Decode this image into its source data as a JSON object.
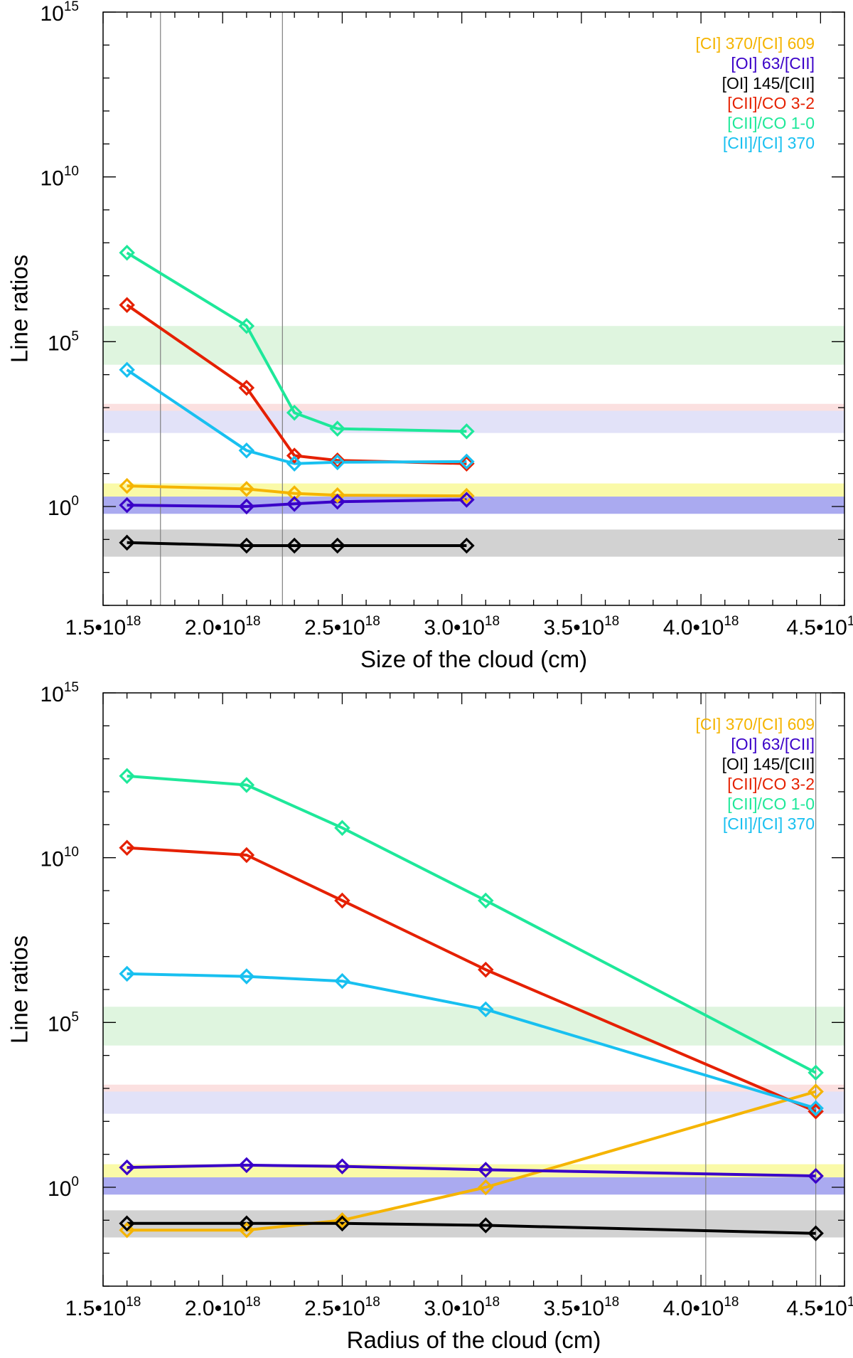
{
  "chart_data": [
    {
      "type": "line",
      "yscale": "log",
      "xlabel": "Size of the cloud (cm)",
      "ylabel": "Line ratios",
      "xlim": [
        1.5e+18,
        4.6e+18
      ],
      "ylim": [
        0.001,
        1000000000000000.0
      ],
      "x_tick_labels": [
        {
          "mantissa": "1.5•10",
          "exp": "18"
        },
        {
          "mantissa": "2.0•10",
          "exp": "18"
        },
        {
          "mantissa": "2.5•10",
          "exp": "18"
        },
        {
          "mantissa": "3.0•10",
          "exp": "18"
        },
        {
          "mantissa": "3.5•10",
          "exp": "18"
        },
        {
          "mantissa": "4.0•10",
          "exp": "18"
        },
        {
          "mantissa": "4.5•10",
          "exp": "1"
        }
      ],
      "y_tick_labels": [
        {
          "base": "10",
          "exp": "0",
          "value": 1
        },
        {
          "base": "10",
          "exp": "5",
          "value": 100000.0
        },
        {
          "base": "10",
          "exp": "10",
          "value": 10000000000.0
        },
        {
          "base": "10",
          "exp": "15",
          "value": 1000000000000000.0
        }
      ],
      "vertical_lines": [
        1.74e+18,
        2.25e+18
      ],
      "bands": [
        {
          "low": 20000.0,
          "high": 300000.0,
          "color": "#dff5df"
        },
        {
          "low": 800,
          "high": 1300,
          "color": "#fbe0e0"
        },
        {
          "low": 170,
          "high": 800,
          "color": "#e2e2f8"
        },
        {
          "low": 2.0,
          "high": 5.0,
          "color": "#fafaa8"
        },
        {
          "low": 0.6,
          "high": 2.0,
          "color": "#aaaaf0"
        },
        {
          "low": 0.03,
          "high": 0.2,
          "color": "#d2d2d2"
        }
      ],
      "series": [
        {
          "name": "[CI] 370/[CI] 609",
          "color": "#f5b400",
          "x": [
            1.6e+18,
            2.1e+18,
            2.3e+18,
            2.48e+18,
            3.02e+18
          ],
          "values": [
            4.2,
            3.4,
            2.5,
            2.2,
            2.1
          ]
        },
        {
          "name": "[OI] 63/[CII]",
          "color": "#3a00c8",
          "x": [
            1.6e+18,
            2.1e+18,
            2.3e+18,
            2.48e+18,
            3.02e+18
          ],
          "values": [
            1.1,
            1.0,
            1.2,
            1.4,
            1.6
          ]
        },
        {
          "name": "[OI] 145/[CII]",
          "color": "#000000",
          "x": [
            1.6e+18,
            2.1e+18,
            2.3e+18,
            2.48e+18,
            3.02e+18
          ],
          "values": [
            0.08,
            0.065,
            0.065,
            0.065,
            0.065
          ]
        },
        {
          "name": "[CII]/CO 3-2",
          "color": "#e52000",
          "x": [
            1.6e+18,
            2.1e+18,
            2.3e+18,
            2.48e+18,
            3.02e+18
          ],
          "values": [
            1300000.0,
            4000.0,
            35,
            25,
            20
          ]
        },
        {
          "name": "[CII]/CO 1-0",
          "color": "#1ee89a",
          "x": [
            1.6e+18,
            2.1e+18,
            2.3e+18,
            2.48e+18,
            3.02e+18
          ],
          "values": [
            50000000.0,
            300000.0,
            700,
            230,
            190
          ]
        },
        {
          "name": "[CII]/[CI] 370",
          "color": "#18c0f0",
          "x": [
            1.6e+18,
            2.1e+18,
            2.3e+18,
            2.48e+18,
            3.02e+18
          ],
          "values": [
            14000.0,
            50,
            20,
            22,
            23
          ]
        }
      ]
    },
    {
      "type": "line",
      "yscale": "log",
      "xlabel": "Radius of the cloud (cm)",
      "ylabel": "Line ratios",
      "xlim": [
        1.5e+18,
        4.6e+18
      ],
      "ylim": [
        0.001,
        1000000000000000.0
      ],
      "x_tick_labels": [
        {
          "mantissa": "1.5•10",
          "exp": "18"
        },
        {
          "mantissa": "2.0•10",
          "exp": "18"
        },
        {
          "mantissa": "2.5•10",
          "exp": "18"
        },
        {
          "mantissa": "3.0•10",
          "exp": "18"
        },
        {
          "mantissa": "3.5•10",
          "exp": "18"
        },
        {
          "mantissa": "4.0•10",
          "exp": "18"
        },
        {
          "mantissa": "4.5•10",
          "exp": "1"
        }
      ],
      "y_tick_labels": [
        {
          "base": "10",
          "exp": "0",
          "value": 1
        },
        {
          "base": "10",
          "exp": "5",
          "value": 100000.0
        },
        {
          "base": "10",
          "exp": "10",
          "value": 10000000000.0
        },
        {
          "base": "10",
          "exp": "15",
          "value": 1000000000000000.0
        }
      ],
      "vertical_lines": [
        4.02e+18,
        4.48e+18
      ],
      "bands": [
        {
          "low": 20000.0,
          "high": 300000.0,
          "color": "#dff5df"
        },
        {
          "low": 800,
          "high": 1300,
          "color": "#fbe0e0"
        },
        {
          "low": 170,
          "high": 800,
          "color": "#e2e2f8"
        },
        {
          "low": 2.0,
          "high": 5.0,
          "color": "#fafaa8"
        },
        {
          "low": 0.6,
          "high": 2.0,
          "color": "#aaaaf0"
        },
        {
          "low": 0.03,
          "high": 0.2,
          "color": "#d2d2d2"
        }
      ],
      "series": [
        {
          "name": "[CI] 370/[CI] 609",
          "color": "#f5b400",
          "x": [
            1.6e+18,
            2.1e+18,
            2.5e+18,
            3.1e+18,
            4.48e+18
          ],
          "values": [
            0.05,
            0.05,
            0.1,
            1.0,
            800
          ]
        },
        {
          "name": "[OI] 63/[CII]",
          "color": "#3a00c8",
          "x": [
            1.6e+18,
            2.1e+18,
            2.5e+18,
            3.1e+18,
            4.48e+18
          ],
          "values": [
            4.0,
            4.7,
            4.3,
            3.4,
            2.2
          ]
        },
        {
          "name": "[OI] 145/[CII]",
          "color": "#000000",
          "x": [
            1.6e+18,
            2.1e+18,
            2.5e+18,
            3.1e+18,
            4.48e+18
          ],
          "values": [
            0.08,
            0.08,
            0.08,
            0.07,
            0.04
          ]
        },
        {
          "name": "[CII]/CO 3-2",
          "color": "#e52000",
          "x": [
            1.6e+18,
            2.1e+18,
            2.5e+18,
            3.1e+18,
            4.48e+18
          ],
          "values": [
            20000000000.0,
            12000000000.0,
            500000000.0,
            4000000.0,
            200
          ]
        },
        {
          "name": "[CII]/CO 1-0",
          "color": "#1ee89a",
          "x": [
            1.6e+18,
            2.1e+18,
            2.5e+18,
            3.1e+18,
            4.48e+18
          ],
          "values": [
            3000000000000.0,
            1600000000000.0,
            80000000000.0,
            500000000.0,
            3000
          ]
        },
        {
          "name": "[CII]/[CI] 370",
          "color": "#18c0f0",
          "x": [
            1.6e+18,
            2.1e+18,
            2.5e+18,
            3.1e+18,
            4.48e+18
          ],
          "values": [
            3000000.0,
            2500000.0,
            1800000.0,
            250000.0,
            250
          ]
        }
      ]
    }
  ]
}
